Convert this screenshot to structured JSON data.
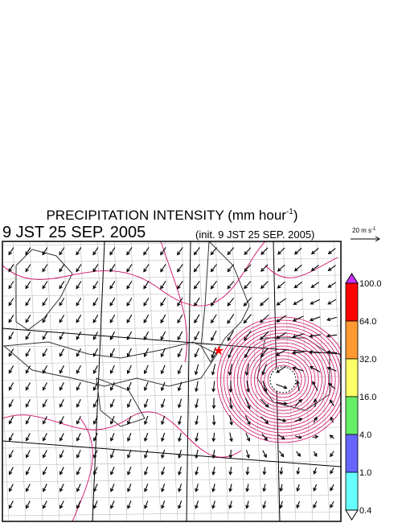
{
  "header": {
    "title": "PRECIPITATION INTENSITY (mm hour",
    "title_sup": "-1",
    "title_end": ")",
    "time": "9 JST 25 SEP. 2005",
    "init": "(init. 9 JST 25 SEP. 2005)"
  },
  "vector_legend": {
    "label": "20 m s",
    "sup": "-1"
  },
  "colorbar": {
    "labels": [
      "100.0",
      "64.0",
      "32.0",
      "16.0",
      "4.0",
      "1.0",
      "0.4"
    ],
    "colors": [
      "#ff0000",
      "#ff9933",
      "#ffff66",
      "#66ee66",
      "#6666ff",
      "#66ffff"
    ],
    "over_color": "#cc33ff",
    "under_color": "#ffffff"
  }
}
